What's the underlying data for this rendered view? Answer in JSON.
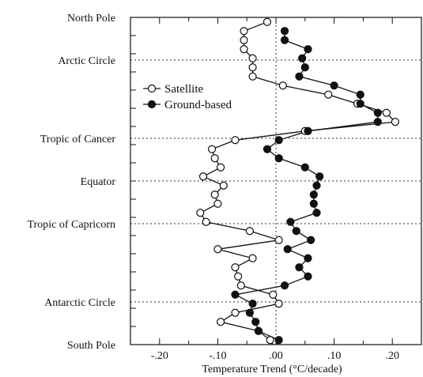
{
  "chart_data": {
    "type": "line",
    "orientation": "horizontal-value-axis",
    "xlabel": "Temperature Trend (°C/decade)",
    "ylabel": "",
    "xlim": [
      -0.25,
      0.25
    ],
    "x_ticks": [
      {
        "value": -0.2,
        "label": "-.20"
      },
      {
        "value": -0.1,
        "label": "-.10"
      },
      {
        "value": 0.0,
        "label": ".00"
      },
      {
        "value": 0.1,
        "label": ".10"
      },
      {
        "value": 0.2,
        "label": ".20"
      }
    ],
    "y_axis": "latitude",
    "ylim": [
      -90,
      90
    ],
    "y_labels": [
      {
        "lat": 90,
        "label": "North Pole"
      },
      {
        "lat": 66.5,
        "label": "Arctic Circle"
      },
      {
        "lat": 23.5,
        "label": "Tropic of Cancer"
      },
      {
        "lat": 0,
        "label": "Equator"
      },
      {
        "lat": -23.5,
        "label": "Tropic of Capricorn"
      },
      {
        "lat": -66.5,
        "label": "Antarctic Circle"
      },
      {
        "lat": -90,
        "label": "South Pole"
      }
    ],
    "reference_lines": [
      {
        "lat": 66.5,
        "style": "dotted"
      },
      {
        "lat": 23.5,
        "style": "dotted"
      },
      {
        "lat": 0,
        "style": "dotted"
      },
      {
        "lat": -23.5,
        "style": "dotted"
      },
      {
        "lat": -66.5,
        "style": "dotted"
      },
      {
        "x": 0,
        "style": "dotted"
      }
    ],
    "legend": {
      "position": "upper-left"
    },
    "series": [
      {
        "name": "Satellite",
        "marker": "open-circle",
        "points": [
          {
            "lat": 87.5,
            "x": -0.015
          },
          {
            "lat": 82.5,
            "x": -0.055
          },
          {
            "lat": 77.5,
            "x": -0.055
          },
          {
            "lat": 72.5,
            "x": -0.055
          },
          {
            "lat": 67.5,
            "x": -0.04
          },
          {
            "lat": 62.5,
            "x": -0.04
          },
          {
            "lat": 57.5,
            "x": -0.04
          },
          {
            "lat": 52.5,
            "x": 0.012
          },
          {
            "lat": 47.5,
            "x": 0.09
          },
          {
            "lat": 42.5,
            "x": 0.14
          },
          {
            "lat": 37.5,
            "x": 0.19
          },
          {
            "lat": 32.5,
            "x": 0.205
          },
          {
            "lat": 27.5,
            "x": 0.05
          },
          {
            "lat": 22.5,
            "x": -0.07
          },
          {
            "lat": 17.5,
            "x": -0.11
          },
          {
            "lat": 12.5,
            "x": -0.105
          },
          {
            "lat": 7.5,
            "x": -0.095
          },
          {
            "lat": 2.5,
            "x": -0.125
          },
          {
            "lat": -2.5,
            "x": -0.09
          },
          {
            "lat": -7.5,
            "x": -0.105
          },
          {
            "lat": -12.5,
            "x": -0.1
          },
          {
            "lat": -17.5,
            "x": -0.13
          },
          {
            "lat": -22.5,
            "x": -0.12
          },
          {
            "lat": -27.5,
            "x": -0.045
          },
          {
            "lat": -32.5,
            "x": 0.005
          },
          {
            "lat": -37.5,
            "x": -0.1
          },
          {
            "lat": -42.5,
            "x": -0.04
          },
          {
            "lat": -47.5,
            "x": -0.07
          },
          {
            "lat": -52.5,
            "x": -0.065
          },
          {
            "lat": -57.5,
            "x": -0.06
          },
          {
            "lat": -62.5,
            "x": -0.005
          },
          {
            "lat": -67.5,
            "x": 0.005
          },
          {
            "lat": -72.5,
            "x": -0.07
          },
          {
            "lat": -77.5,
            "x": -0.095
          },
          {
            "lat": -82.5,
            "x": -0.03
          },
          {
            "lat": -87.5,
            "x": -0.01
          },
          {
            "lat": -90,
            "x": -0.005
          }
        ]
      },
      {
        "name": "Ground-based",
        "marker": "filled-circle",
        "points": [
          {
            "lat": 82.5,
            "x": 0.015
          },
          {
            "lat": 77.5,
            "x": 0.015
          },
          {
            "lat": 72.5,
            "x": 0.055
          },
          {
            "lat": 67.5,
            "x": 0.045
          },
          {
            "lat": 62.5,
            "x": 0.05
          },
          {
            "lat": 57.5,
            "x": 0.04
          },
          {
            "lat": 52.5,
            "x": 0.1
          },
          {
            "lat": 47.5,
            "x": 0.145
          },
          {
            "lat": 42.5,
            "x": 0.145
          },
          {
            "lat": 37.5,
            "x": 0.175
          },
          {
            "lat": 32.5,
            "x": 0.175
          },
          {
            "lat": 27.5,
            "x": 0.055
          },
          {
            "lat": 22.5,
            "x": 0.005
          },
          {
            "lat": 17.5,
            "x": -0.015
          },
          {
            "lat": 12.5,
            "x": 0.005
          },
          {
            "lat": 7.5,
            "x": 0.05
          },
          {
            "lat": 2.5,
            "x": 0.075
          },
          {
            "lat": -2.5,
            "x": 0.07
          },
          {
            "lat": -7.5,
            "x": 0.065
          },
          {
            "lat": -12.5,
            "x": 0.065
          },
          {
            "lat": -17.5,
            "x": 0.07
          },
          {
            "lat": -22.5,
            "x": 0.025
          },
          {
            "lat": -27.5,
            "x": 0.035
          },
          {
            "lat": -32.5,
            "x": 0.06
          },
          {
            "lat": -37.5,
            "x": 0.02
          },
          {
            "lat": -42.5,
            "x": 0.055
          },
          {
            "lat": -47.5,
            "x": 0.04
          },
          {
            "lat": -52.5,
            "x": 0.055
          },
          {
            "lat": -57.5,
            "x": 0.015
          },
          {
            "lat": -62.5,
            "x": -0.07
          },
          {
            "lat": -67.5,
            "x": -0.04
          },
          {
            "lat": -72.5,
            "x": -0.045
          },
          {
            "lat": -77.5,
            "x": -0.035
          },
          {
            "lat": -82.5,
            "x": -0.03
          },
          {
            "lat": -87.5,
            "x": 0.005
          },
          {
            "lat": -90,
            "x": 0.0
          }
        ]
      }
    ]
  }
}
